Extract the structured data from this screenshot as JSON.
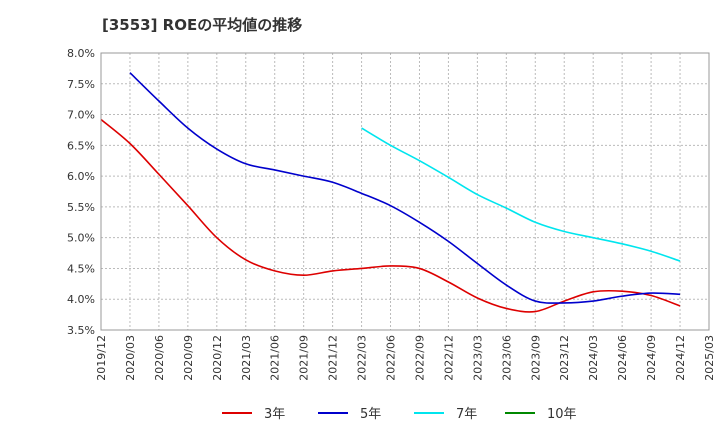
{
  "chart_data": {
    "type": "line",
    "title": "[3553]  ROEの平均値の推移",
    "xlabel": "",
    "ylabel": "",
    "x": [
      "2019/12",
      "2020/03",
      "2020/06",
      "2020/09",
      "2020/12",
      "2021/03",
      "2021/06",
      "2021/09",
      "2021/12",
      "2022/03",
      "2022/06",
      "2022/09",
      "2022/12",
      "2023/03",
      "2023/06",
      "2023/09",
      "2023/12",
      "2024/03",
      "2024/06",
      "2024/09",
      "2024/12",
      "2025/03"
    ],
    "y_ticks": [
      "8.0%",
      "7.5%",
      "7.0%",
      "6.5%",
      "6.0%",
      "5.5%",
      "5.0%",
      "4.5%",
      "4.0%",
      "3.5%"
    ],
    "ylim": [
      3.5,
      8.0
    ],
    "grid": true,
    "legend_position": "bottom",
    "series": [
      {
        "name": "3年",
        "color": "#dd0000",
        "values": [
          6.92,
          6.53,
          6.03,
          5.52,
          5.0,
          4.64,
          4.46,
          4.39,
          4.46,
          4.5,
          4.54,
          4.5,
          4.28,
          4.02,
          3.85,
          3.8,
          3.97,
          4.12,
          4.13,
          4.06,
          3.89,
          null
        ]
      },
      {
        "name": "5年",
        "color": "#0000cc",
        "values": [
          null,
          7.68,
          7.22,
          6.78,
          6.44,
          6.2,
          6.1,
          6.0,
          5.9,
          5.72,
          5.52,
          5.25,
          4.94,
          4.58,
          4.23,
          3.97,
          3.94,
          3.97,
          4.05,
          4.1,
          4.08,
          null
        ]
      },
      {
        "name": "7年",
        "color": "#00e5ee",
        "values": [
          null,
          null,
          null,
          null,
          null,
          null,
          null,
          null,
          null,
          6.78,
          6.5,
          6.25,
          5.98,
          5.7,
          5.48,
          5.25,
          5.1,
          5.0,
          4.9,
          4.78,
          4.62,
          null
        ]
      },
      {
        "name": "10年",
        "color": "#008800",
        "values": [
          null,
          null,
          null,
          null,
          null,
          null,
          null,
          null,
          null,
          null,
          null,
          null,
          null,
          null,
          null,
          null,
          null,
          null,
          null,
          null,
          null,
          null
        ]
      }
    ]
  }
}
